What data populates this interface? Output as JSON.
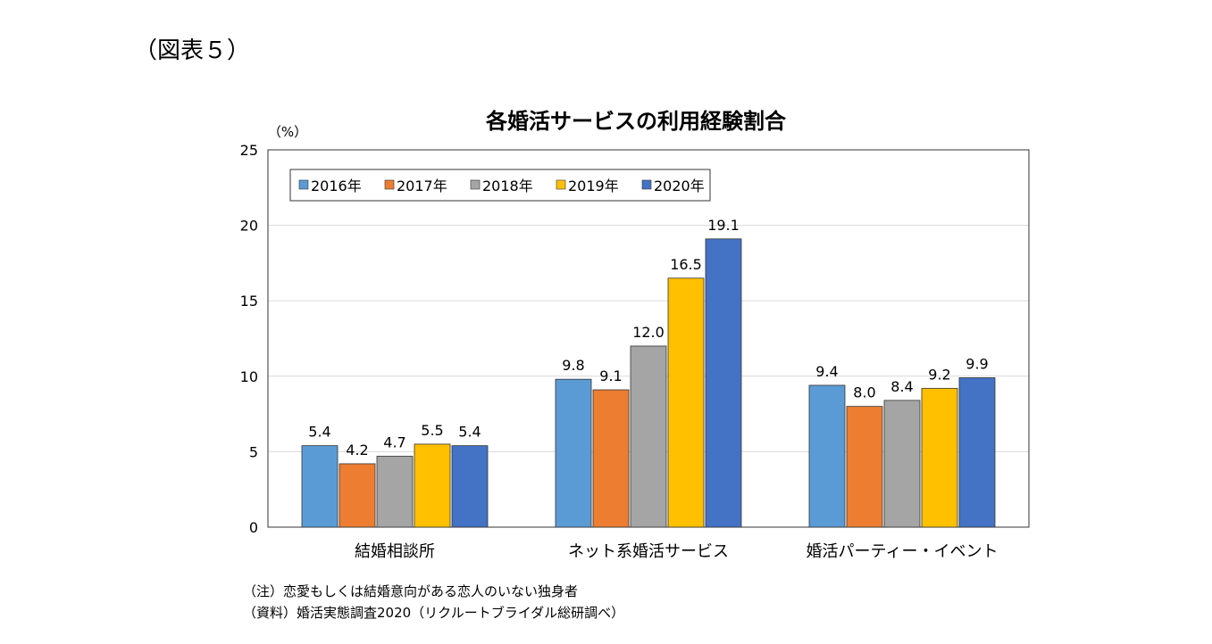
{
  "figure_label": "（図表５）",
  "notes": [
    "（注）恋愛もしくは結婚意向がある恋人のいない独身者",
    "（資料）婚活実態調査2020（リクルートブライダル総研調べ）"
  ],
  "chart_data": {
    "type": "bar",
    "title": "各婚活サービスの利用経験割合",
    "ylabel": "（%）",
    "xlabel": "",
    "ylim": [
      0,
      25
    ],
    "yticks": [
      0,
      5,
      10,
      15,
      20,
      25
    ],
    "grid": true,
    "legend_position": "top-left",
    "categories": [
      "結婚相談所",
      "ネット系婚活サービス",
      "婚活パーティー・イベント"
    ],
    "series": [
      {
        "name": "2016年",
        "color": "#5B9BD5",
        "values": [
          5.4,
          9.8,
          9.4
        ]
      },
      {
        "name": "2017年",
        "color": "#ED7D31",
        "values": [
          4.2,
          9.1,
          8.0
        ]
      },
      {
        "name": "2018年",
        "color": "#A5A5A5",
        "values": [
          4.7,
          12.0,
          8.4
        ]
      },
      {
        "name": "2019年",
        "color": "#FFC000",
        "values": [
          5.5,
          16.5,
          9.2
        ]
      },
      {
        "name": "2020年",
        "color": "#4472C4",
        "values": [
          5.4,
          19.1,
          9.9
        ]
      }
    ]
  }
}
